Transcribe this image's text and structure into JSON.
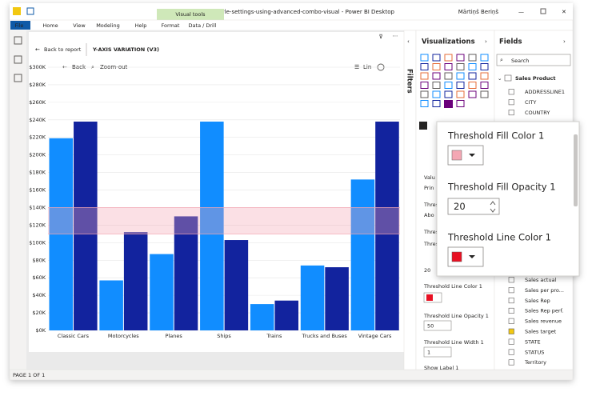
{
  "window": {
    "title": "y-axis-style-settings-using-advanced-combo-visual - Power BI Desktop",
    "user": "Mārtiņš Beriņš"
  },
  "ribbon": {
    "context": "Visual tools",
    "tabs": [
      "File",
      "Home",
      "View",
      "Modeling",
      "Help",
      "Format",
      "Data / Drill"
    ]
  },
  "report": {
    "back": "Back to report",
    "visual_title": "Y-AXIS VARIATION (V3)",
    "back_button": "Back",
    "zoom_out": "Zoom-out",
    "scale": "Lin"
  },
  "chart_data": {
    "type": "bar",
    "categories": [
      "Classic Cars",
      "Motorcycles",
      "Planes",
      "Ships",
      "Trains",
      "Trucks and Buses",
      "Vintage Cars"
    ],
    "series": [
      {
        "color": "#118dff",
        "values": [
          219000,
          57000,
          87000,
          238000,
          30000,
          74000,
          172000
        ]
      },
      {
        "color": "#12239e",
        "values": [
          238000,
          112000,
          130000,
          103000,
          34000,
          72000,
          238000
        ]
      }
    ],
    "threshold_band": {
      "range": [
        110000,
        140000
      ],
      "color": "#f4a7b4"
    },
    "ylim": [
      0,
      300000
    ],
    "yticks": [
      {
        "value": 0,
        "label": "$0K"
      },
      {
        "value": 20000,
        "label": "$20K"
      },
      {
        "value": 40000,
        "label": "$40K"
      },
      {
        "value": 60000,
        "label": "$60K"
      },
      {
        "value": 80000,
        "label": "$80K"
      },
      {
        "value": 100000,
        "label": "$100K"
      },
      {
        "value": 120000,
        "label": "$120K"
      },
      {
        "value": 140000,
        "label": "$140K"
      },
      {
        "value": 160000,
        "label": "$160K"
      },
      {
        "value": 180000,
        "label": "$180K"
      },
      {
        "value": 200000,
        "label": "$200K"
      },
      {
        "value": 220000,
        "label": "$220K"
      },
      {
        "value": 240000,
        "label": "$240K"
      },
      {
        "value": 260000,
        "label": "$260K"
      },
      {
        "value": 280000,
        "label": "$280K"
      },
      {
        "value": 300000,
        "label": "$300K"
      }
    ],
    "grid": true
  },
  "filters_pane": {
    "title": "Filters"
  },
  "visualizations_pane": {
    "title": "Visualizations",
    "behind_popup": [
      "Valu",
      "Prin",
      "Thres",
      "Abo",
      "Thres",
      "Thres",
      "20"
    ],
    "settings": [
      {
        "label": "Threshold Line Color 1",
        "swatch": "#e81123"
      },
      {
        "label": "Threshold Line Opacity 1",
        "value": "50"
      },
      {
        "label": "Threshold Line Width 1",
        "value": "1"
      },
      {
        "label": "Show Label 1"
      }
    ]
  },
  "fields_pane": {
    "title": "Fields",
    "search": "Search",
    "table": "Sales Product",
    "fields": [
      {
        "name": "ADDRESSLINE1"
      },
      {
        "name": "CITY"
      },
      {
        "name": "COUNTRY"
      },
      {
        "name": "Sales actual"
      },
      {
        "name": "Sales per pro..."
      },
      {
        "name": "Sales Rep"
      },
      {
        "name": "Sales Rep perf."
      },
      {
        "name": "Sales revenue"
      },
      {
        "name": "Sales target",
        "checked": true
      },
      {
        "name": "STATE"
      },
      {
        "name": "STATUS"
      },
      {
        "name": "Territory"
      }
    ]
  },
  "popup": {
    "items": [
      {
        "label": "Threshold Fill Color 1",
        "swatch": "#f4a7b4"
      },
      {
        "label": "Threshold Fill Opacity 1",
        "value": "20"
      },
      {
        "label": "Threshold Line Color 1",
        "swatch": "#e81123"
      }
    ]
  },
  "status": "PAGE 1 OF 1"
}
